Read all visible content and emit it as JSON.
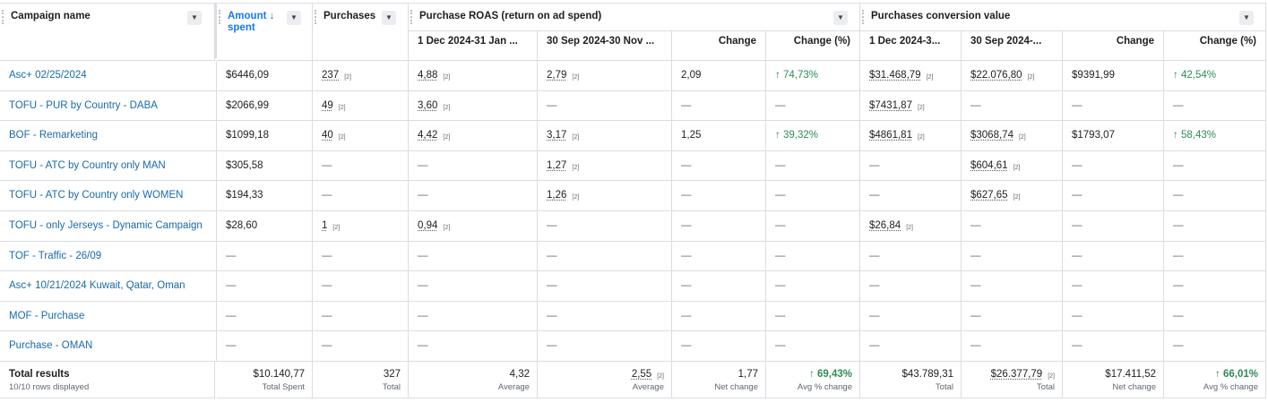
{
  "headers": {
    "campaign_name": "Campaign name",
    "amount_spent": "Amount ↓ spent",
    "amount_spent_line1": "Amount ↓",
    "amount_spent_line2": "spent",
    "purchases": "Purchases",
    "purchase_roas": "Purchase ROAS (return on ad spend)",
    "purchases_conversion_value": "Purchases conversion value",
    "roas_sub": [
      "1 Dec 2024-31 Jan ...",
      "30 Sep 2024-30 Nov ...",
      "Change",
      "Change (%)"
    ],
    "pcv_sub": [
      "1 Dec 2024-3...",
      "30 Sep 2024-...",
      "Change",
      "Change (%)"
    ],
    "dropdown_glyph": "▼"
  },
  "footnote": "[2]",
  "dash": "—",
  "arrow_up": "↑",
  "rows": [
    {
      "name": "Asc+ 02/25/2024",
      "spent": "$6446,09",
      "purchases": "237",
      "roas_a": "4,88",
      "roas_b": "2,79",
      "roas_change": "2,09",
      "roas_pct": "74,73%",
      "pcv_a": "$31.468,79",
      "pcv_b": "$22.076,80",
      "pcv_change": "$9391,99",
      "pcv_pct": "42,54%"
    },
    {
      "name": "TOFU - PUR by Country - DABA",
      "spent": "$2066,99",
      "purchases": "49",
      "roas_a": "3,60",
      "roas_b": "",
      "roas_change": "",
      "roas_pct": "",
      "pcv_a": "$7431,87",
      "pcv_b": "",
      "pcv_change": "",
      "pcv_pct": ""
    },
    {
      "name": "BOF - Remarketing",
      "spent": "$1099,18",
      "purchases": "40",
      "roas_a": "4,42",
      "roas_b": "3,17",
      "roas_change": "1,25",
      "roas_pct": "39,32%",
      "pcv_a": "$4861,81",
      "pcv_b": "$3068,74",
      "pcv_change": "$1793,07",
      "pcv_pct": "58,43%"
    },
    {
      "name": "TOFU - ATC by Country only MAN",
      "spent": "$305,58",
      "purchases": "",
      "roas_a": "",
      "roas_b": "1,27",
      "roas_change": "",
      "roas_pct": "",
      "pcv_a": "",
      "pcv_b": "$604,61",
      "pcv_change": "",
      "pcv_pct": ""
    },
    {
      "name": "TOFU - ATC by Country only WOMEN",
      "spent": "$194,33",
      "purchases": "",
      "roas_a": "",
      "roas_b": "1,26",
      "roas_change": "",
      "roas_pct": "",
      "pcv_a": "",
      "pcv_b": "$627,65",
      "pcv_change": "",
      "pcv_pct": ""
    },
    {
      "name": "TOFU - only Jerseys - Dynamic Campaign",
      "spent": "$28,60",
      "purchases": "1",
      "roas_a": "0,94",
      "roas_b": "",
      "roas_change": "",
      "roas_pct": "",
      "pcv_a": "$26,84",
      "pcv_b": "",
      "pcv_change": "",
      "pcv_pct": ""
    },
    {
      "name": "TOF - Traffic - 26/09",
      "spent": "",
      "purchases": "",
      "roas_a": "",
      "roas_b": "",
      "roas_change": "",
      "roas_pct": "",
      "pcv_a": "",
      "pcv_b": "",
      "pcv_change": "",
      "pcv_pct": ""
    },
    {
      "name": "Asc+ 10/21/2024 Kuwait, Qatar, Oman",
      "spent": "",
      "purchases": "",
      "roas_a": "",
      "roas_b": "",
      "roas_change": "",
      "roas_pct": "",
      "pcv_a": "",
      "pcv_b": "",
      "pcv_change": "",
      "pcv_pct": ""
    },
    {
      "name": "MOF - Purchase",
      "spent": "",
      "purchases": "",
      "roas_a": "",
      "roas_b": "",
      "roas_change": "",
      "roas_pct": "",
      "pcv_a": "",
      "pcv_b": "",
      "pcv_change": "",
      "pcv_pct": ""
    },
    {
      "name": "Purchase - OMAN",
      "spent": "",
      "purchases": "",
      "roas_a": "",
      "roas_b": "",
      "roas_change": "",
      "roas_pct": "",
      "pcv_a": "",
      "pcv_b": "",
      "pcv_change": "",
      "pcv_pct": ""
    }
  ],
  "totals": {
    "title": "Total results",
    "subtitle": "10/10 rows displayed",
    "cells": [
      {
        "value": "$10.140,77",
        "label": "Total Spent"
      },
      {
        "value": "327",
        "label": "Total"
      },
      {
        "value": "4,32",
        "label": "Average"
      },
      {
        "value": "2,55",
        "label": "Average",
        "fn": true
      },
      {
        "value": "1,77",
        "label": "Net change"
      },
      {
        "value": "↑ 69,43%",
        "label": "Avg % change",
        "bold": true
      },
      {
        "value": "$43.789,31",
        "label": "Total"
      },
      {
        "value": "$26.377,79",
        "label": "Total",
        "fn": true
      },
      {
        "value": "$17.411,52",
        "label": "Net change"
      },
      {
        "value": "↑ 66,01%",
        "label": "Avg % change",
        "bold": true
      }
    ]
  },
  "colors": {
    "link": "#1a6aa8",
    "positive": "#2e8b57",
    "sorted_header": "#1877f2",
    "border": "#dadde1"
  }
}
